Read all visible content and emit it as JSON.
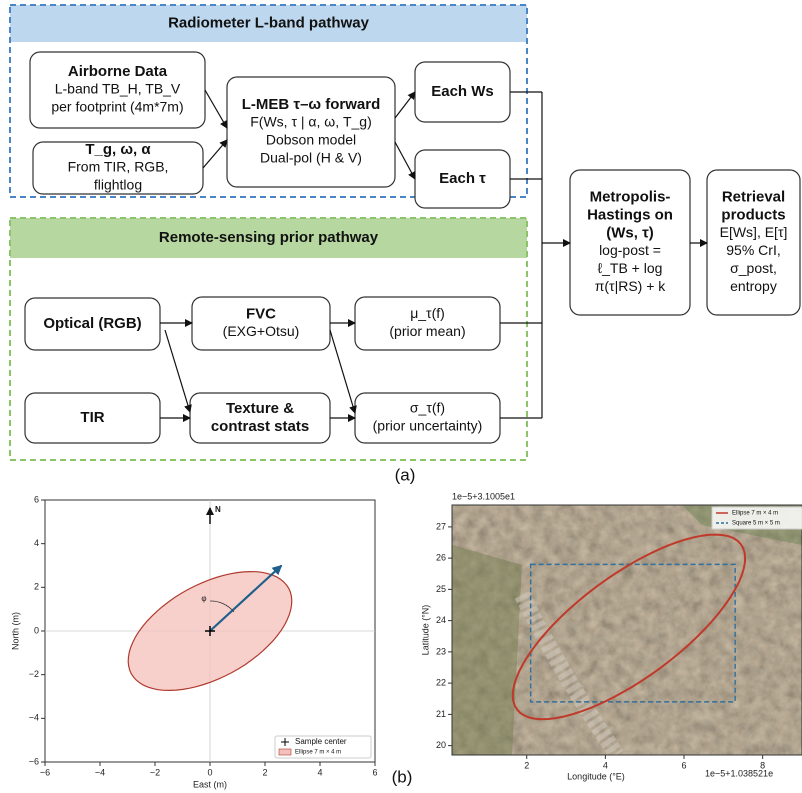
{
  "diagram": {
    "pathways": [
      {
        "title": "Radiometer L-band pathway",
        "fill": "#bcd7ee",
        "border": "#4a86c5"
      },
      {
        "title": "Remote-sensing prior pathway",
        "fill": "#b6d7a0",
        "border": "#8cc46a"
      }
    ],
    "nodes": [
      {
        "title": [
          "Airborne Data"
        ],
        "lines": [
          "L-band TB_H, TB_V",
          "per footprint (4m*7m)"
        ]
      },
      {
        "title": [
          "T_g, ω, α"
        ],
        "lines": [
          "From TIR, RGB,",
          "flightlog"
        ]
      },
      {
        "title": [
          "L-MEB τ–ω forward"
        ],
        "lines": [
          "F(Ws, τ | α, ω, T_g)",
          "Dobson model",
          "Dual-pol (H & V)"
        ]
      },
      {
        "title": [
          "Each Ws"
        ],
        "lines": []
      },
      {
        "title": [
          "Each τ"
        ],
        "lines": []
      },
      {
        "title": [
          "Optical (RGB)"
        ],
        "lines": []
      },
      {
        "title": [
          "FVC"
        ],
        "lines": [
          "(EXG+Otsu)"
        ]
      },
      {
        "title": [],
        "lines": [
          "μ_τ(f)",
          "(prior mean)"
        ]
      },
      {
        "title": [
          "TIR"
        ],
        "lines": []
      },
      {
        "title": [
          "Texture &",
          "contrast stats"
        ],
        "lines": []
      },
      {
        "title": [],
        "lines": [
          "σ_τ(f)",
          "(prior uncertainty)"
        ]
      },
      {
        "title": [
          "Metropolis-",
          "Hastings on",
          "(Ws, τ)"
        ],
        "lines": [
          "log-post =",
          "ℓ_TB + log",
          "π(τ|RS) + k"
        ]
      },
      {
        "title": [
          "Retrieval",
          "products"
        ],
        "lines": [
          "E[Ws], E[τ]",
          "95% CrI,",
          "σ_post,",
          "entropy"
        ]
      }
    ],
    "panel_labels": [
      "(a)",
      "(b)"
    ]
  },
  "chart_data": [
    {
      "type": "scatter",
      "xlabel": "East (m)",
      "ylabel": "North (m)",
      "xlim": [
        -6,
        6
      ],
      "ylim": [
        -6,
        6
      ],
      "xticks": [
        {
          "value": -6,
          "label": "−6"
        },
        {
          "value": -4,
          "label": "−4"
        },
        {
          "value": -2,
          "label": "−2"
        },
        0,
        2,
        4,
        6
      ],
      "yticks": [
        {
          "value": -6,
          "label": "−6"
        },
        {
          "value": -4,
          "label": "−4"
        },
        {
          "value": -2,
          "label": "−2"
        },
        0,
        2,
        4,
        6
      ],
      "series": [
        {
          "name": "Sample center",
          "color": "#000000",
          "x": [
            0
          ],
          "y": [
            0
          ]
        }
      ],
      "ellipse": {
        "name": "Ellipse 7 m × 4 m",
        "color": "#f4c0bb",
        "edge": "#b03a2e",
        "center": [
          0,
          0
        ],
        "semi_major": 3.5,
        "semi_minor": 2,
        "angle": 40
      },
      "arrow": {
        "x": 2.6,
        "y": 3.0,
        "color": "#1f5f8b"
      },
      "north_label": "N",
      "angle_label": "φ",
      "legend": "lower right"
    },
    {
      "type": "image",
      "y_offset_label": "1e−5+3.1005e1",
      "x_offset_label": "1e−5+1.038521e",
      "xlabel": "Longitude (°E)",
      "ylabel": "Latitude (°N)",
      "xlim": [
        0.1,
        9.0
      ],
      "ylim": [
        19.7,
        27.7
      ],
      "xticks": [
        2,
        4,
        6,
        8
      ],
      "yticks": [
        20,
        21,
        22,
        23,
        24,
        25,
        26,
        27
      ],
      "ellipse": {
        "name": "Ellipse 7 m × 4 m",
        "color": "#c0392b",
        "center": [
          4.6,
          23.8
        ],
        "semi_major": 3.9,
        "semi_minor": 1.5,
        "angle": 45
      },
      "square": {
        "name": "Square 5 m × 5 m",
        "color": "#2e6f9e",
        "x": [
          2.1,
          7.3
        ],
        "y": [
          21.4,
          25.8
        ]
      },
      "legend": "upper right"
    }
  ]
}
